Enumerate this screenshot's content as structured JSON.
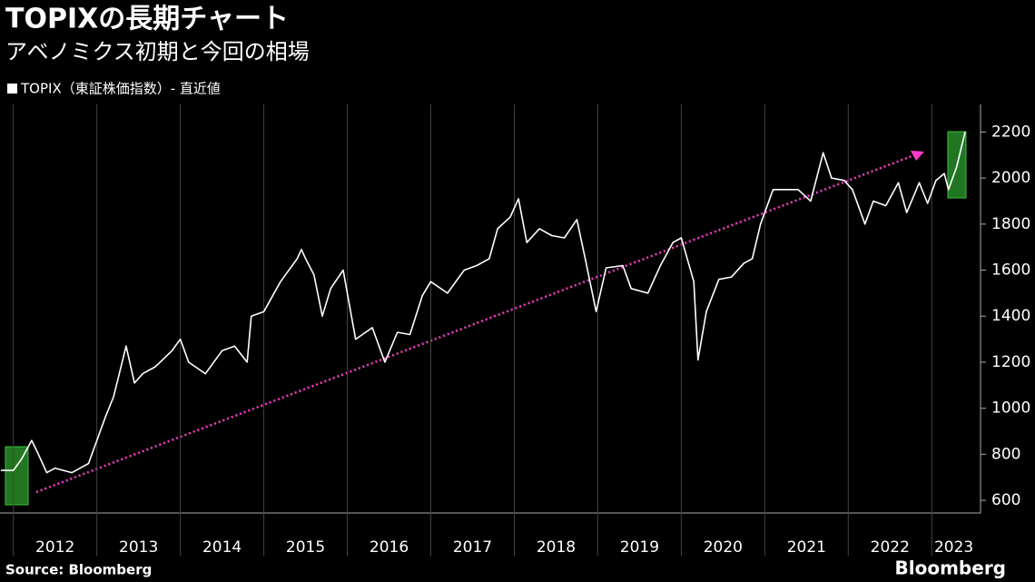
{
  "chart_data": {
    "type": "line",
    "title": "TOPIXの長期チャート",
    "subtitle": "アベノミクス初期と今回の相場",
    "source": "Source: Bloomberg",
    "brand": "Bloomberg",
    "x": [
      2011.85,
      2012.0,
      2012.1,
      2012.22,
      2012.3,
      2012.4,
      2012.5,
      2012.6,
      2012.7,
      2012.8,
      2012.9,
      2013.0,
      2013.1,
      2013.2,
      2013.35,
      2013.45,
      2013.55,
      2013.7,
      2013.9,
      2014.0,
      2014.1,
      2014.3,
      2014.5,
      2014.65,
      2014.8,
      2014.85,
      2015.0,
      2015.2,
      2015.4,
      2015.45,
      2015.5,
      2015.6,
      2015.7,
      2015.8,
      2015.95,
      2016.0,
      2016.1,
      2016.3,
      2016.45,
      2016.6,
      2016.75,
      2016.9,
      2017.0,
      2017.2,
      2017.4,
      2017.55,
      2017.7,
      2017.8,
      2017.95,
      2018.05,
      2018.15,
      2018.3,
      2018.45,
      2018.6,
      2018.75,
      2018.85,
      2018.98,
      2019.1,
      2019.3,
      2019.4,
      2019.6,
      2019.75,
      2019.9,
      2020.0,
      2020.15,
      2020.2,
      2020.3,
      2020.45,
      2020.6,
      2020.75,
      2020.85,
      2020.95,
      2021.1,
      2021.2,
      2021.4,
      2021.55,
      2021.7,
      2021.8,
      2021.95,
      2022.05,
      2022.2,
      2022.3,
      2022.45,
      2022.6,
      2022.7,
      2022.85,
      2022.95,
      2023.05,
      2023.15,
      2023.2,
      2023.3,
      2023.4
    ],
    "series": [
      {
        "name": "TOPIX（東証株価指数）- 直近値",
        "color": "#ffffff",
        "values": [
          730,
          730,
          780,
          860,
          800,
          720,
          740,
          730,
          720,
          740,
          760,
          860,
          960,
          1050,
          1270,
          1110,
          1150,
          1180,
          1250,
          1300,
          1200,
          1150,
          1250,
          1270,
          1200,
          1400,
          1420,
          1550,
          1650,
          1690,
          1650,
          1580,
          1400,
          1520,
          1600,
          1500,
          1300,
          1350,
          1200,
          1330,
          1320,
          1490,
          1550,
          1500,
          1600,
          1620,
          1650,
          1780,
          1830,
          1910,
          1720,
          1780,
          1750,
          1740,
          1820,
          1650,
          1420,
          1610,
          1620,
          1520,
          1500,
          1620,
          1720,
          1740,
          1550,
          1210,
          1420,
          1560,
          1570,
          1630,
          1650,
          1800,
          1950,
          1950,
          1950,
          1900,
          2110,
          2000,
          1990,
          1950,
          1800,
          1900,
          1880,
          1980,
          1850,
          1980,
          1890,
          1990,
          2020,
          1950,
          2050,
          2200
        ]
      }
    ],
    "xlim": [
      2011.84,
      2023.53
    ],
    "xticks": [
      2012,
      2013,
      2014,
      2015,
      2016,
      2017,
      2018,
      2019,
      2020,
      2021,
      2022,
      2023
    ],
    "ylim": [
      545,
      2320
    ],
    "yticks": [
      600,
      800,
      1000,
      1200,
      1400,
      1600,
      1800,
      2000,
      2200
    ],
    "grid": true
  }
}
